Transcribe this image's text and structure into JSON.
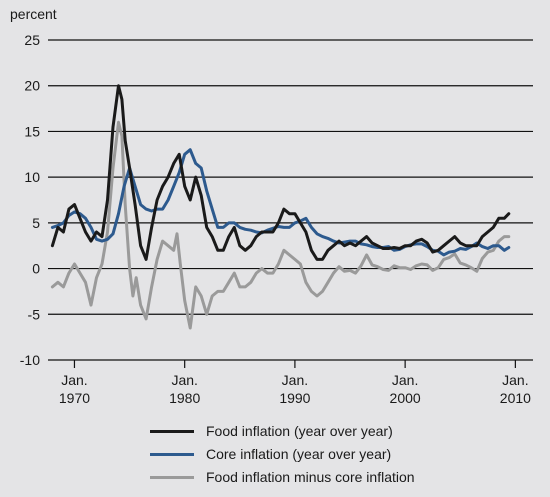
{
  "colors": {
    "food": "#1a1a1a",
    "core": "#2d5a8e",
    "diff": "#9a9a9a",
    "grid": "#111111"
  },
  "chart_data": {
    "type": "line",
    "ylabel": "percent",
    "ylim": [
      -10,
      25
    ],
    "yticks": [
      25,
      20,
      15,
      10,
      5,
      0,
      -5,
      -10
    ],
    "xlim": [
      1967.6,
      2011.6
    ],
    "xticks": [
      {
        "x": 1970,
        "line1": "Jan.",
        "line2": "1970"
      },
      {
        "x": 1980,
        "line1": "Jan.",
        "line2": "1980"
      },
      {
        "x": 1990,
        "line1": "Jan.",
        "line2": "1990"
      },
      {
        "x": 2000,
        "line1": "Jan.",
        "line2": "2000"
      },
      {
        "x": 2010,
        "line1": "Jan.",
        "line2": "2010"
      }
    ],
    "grid": true,
    "legend_position": "bottom",
    "series": [
      {
        "key": "food",
        "name": "Food inflation (year over year)",
        "points": [
          [
            1968.0,
            2.5
          ],
          [
            1968.5,
            4.5
          ],
          [
            1969.0,
            4.0
          ],
          [
            1969.5,
            6.5
          ],
          [
            1970.0,
            7.0
          ],
          [
            1970.5,
            5.5
          ],
          [
            1971.0,
            4.0
          ],
          [
            1971.5,
            3.0
          ],
          [
            1972.0,
            4.0
          ],
          [
            1972.5,
            3.5
          ],
          [
            1973.0,
            7.5
          ],
          [
            1973.5,
            15.5
          ],
          [
            1974.0,
            20.0
          ],
          [
            1974.3,
            18.5
          ],
          [
            1974.6,
            14.0
          ],
          [
            1975.0,
            11.0
          ],
          [
            1975.5,
            7.0
          ],
          [
            1976.0,
            2.5
          ],
          [
            1976.5,
            1.0
          ],
          [
            1977.0,
            4.5
          ],
          [
            1977.5,
            7.5
          ],
          [
            1978.0,
            9.0
          ],
          [
            1978.5,
            10.0
          ],
          [
            1979.0,
            11.5
          ],
          [
            1979.5,
            12.5
          ],
          [
            1980.0,
            9.0
          ],
          [
            1980.5,
            7.5
          ],
          [
            1981.0,
            10.0
          ],
          [
            1981.5,
            8.0
          ],
          [
            1982.0,
            4.5
          ],
          [
            1982.5,
            3.5
          ],
          [
            1983.0,
            2.0
          ],
          [
            1983.5,
            2.0
          ],
          [
            1984.0,
            3.5
          ],
          [
            1984.5,
            4.5
          ],
          [
            1985.0,
            2.5
          ],
          [
            1985.5,
            2.0
          ],
          [
            1986.0,
            2.5
          ],
          [
            1986.5,
            3.5
          ],
          [
            1987.0,
            4.0
          ],
          [
            1987.5,
            4.0
          ],
          [
            1988.0,
            4.0
          ],
          [
            1988.5,
            5.0
          ],
          [
            1989.0,
            6.5
          ],
          [
            1989.5,
            6.0
          ],
          [
            1990.0,
            6.0
          ],
          [
            1990.5,
            5.0
          ],
          [
            1991.0,
            4.0
          ],
          [
            1991.5,
            2.0
          ],
          [
            1992.0,
            1.0
          ],
          [
            1992.5,
            1.0
          ],
          [
            1993.0,
            2.0
          ],
          [
            1993.5,
            2.5
          ],
          [
            1994.0,
            3.0
          ],
          [
            1994.5,
            2.5
          ],
          [
            1995.0,
            2.8
          ],
          [
            1995.5,
            2.5
          ],
          [
            1996.0,
            3.0
          ],
          [
            1996.5,
            3.5
          ],
          [
            1997.0,
            2.8
          ],
          [
            1997.5,
            2.5
          ],
          [
            1998.0,
            2.2
          ],
          [
            1998.5,
            2.2
          ],
          [
            1999.0,
            2.3
          ],
          [
            1999.5,
            2.2
          ],
          [
            2000.0,
            2.5
          ],
          [
            2000.5,
            2.5
          ],
          [
            2001.0,
            3.0
          ],
          [
            2001.5,
            3.2
          ],
          [
            2002.0,
            2.8
          ],
          [
            2002.5,
            1.8
          ],
          [
            2003.0,
            2.0
          ],
          [
            2003.5,
            2.5
          ],
          [
            2004.0,
            3.0
          ],
          [
            2004.5,
            3.5
          ],
          [
            2005.0,
            2.8
          ],
          [
            2005.5,
            2.5
          ],
          [
            2006.0,
            2.5
          ],
          [
            2006.5,
            2.5
          ],
          [
            2007.0,
            3.5
          ],
          [
            2007.5,
            4.0
          ],
          [
            2008.0,
            4.5
          ],
          [
            2008.5,
            5.5
          ],
          [
            2009.0,
            5.5
          ],
          [
            2009.4,
            6.0
          ]
        ]
      },
      {
        "key": "core",
        "name": "Core inflation (year over year)",
        "points": [
          [
            1968.0,
            4.5
          ],
          [
            1968.5,
            4.7
          ],
          [
            1969.0,
            5.0
          ],
          [
            1969.5,
            5.8
          ],
          [
            1970.0,
            6.2
          ],
          [
            1970.5,
            6.0
          ],
          [
            1971.0,
            5.5
          ],
          [
            1971.5,
            4.5
          ],
          [
            1972.0,
            3.2
          ],
          [
            1972.5,
            3.0
          ],
          [
            1973.0,
            3.2
          ],
          [
            1973.5,
            3.8
          ],
          [
            1974.0,
            6.0
          ],
          [
            1974.5,
            9.0
          ],
          [
            1975.0,
            11.0
          ],
          [
            1975.5,
            9.0
          ],
          [
            1976.0,
            7.0
          ],
          [
            1976.5,
            6.5
          ],
          [
            1977.0,
            6.3
          ],
          [
            1977.5,
            6.5
          ],
          [
            1978.0,
            6.5
          ],
          [
            1978.5,
            7.5
          ],
          [
            1979.0,
            9.0
          ],
          [
            1979.5,
            10.5
          ],
          [
            1980.0,
            12.5
          ],
          [
            1980.5,
            13.0
          ],
          [
            1981.0,
            11.5
          ],
          [
            1981.5,
            11.0
          ],
          [
            1982.0,
            8.5
          ],
          [
            1982.5,
            6.5
          ],
          [
            1983.0,
            4.5
          ],
          [
            1983.5,
            4.5
          ],
          [
            1984.0,
            5.0
          ],
          [
            1984.5,
            5.0
          ],
          [
            1985.0,
            4.5
          ],
          [
            1985.5,
            4.3
          ],
          [
            1986.0,
            4.2
          ],
          [
            1986.5,
            4.0
          ],
          [
            1987.0,
            3.9
          ],
          [
            1987.5,
            4.2
          ],
          [
            1988.0,
            4.4
          ],
          [
            1988.5,
            4.6
          ],
          [
            1989.0,
            4.5
          ],
          [
            1989.5,
            4.5
          ],
          [
            1990.0,
            5.0
          ],
          [
            1990.5,
            5.2
          ],
          [
            1991.0,
            5.5
          ],
          [
            1991.5,
            4.5
          ],
          [
            1992.0,
            3.8
          ],
          [
            1992.5,
            3.5
          ],
          [
            1993.0,
            3.3
          ],
          [
            1993.5,
            3.0
          ],
          [
            1994.0,
            2.8
          ],
          [
            1994.5,
            2.9
          ],
          [
            1995.0,
            3.0
          ],
          [
            1995.5,
            3.0
          ],
          [
            1996.0,
            2.7
          ],
          [
            1996.5,
            2.6
          ],
          [
            1997.0,
            2.4
          ],
          [
            1997.5,
            2.3
          ],
          [
            1998.0,
            2.3
          ],
          [
            1998.5,
            2.4
          ],
          [
            1999.0,
            2.0
          ],
          [
            1999.5,
            2.1
          ],
          [
            2000.0,
            2.4
          ],
          [
            2000.5,
            2.6
          ],
          [
            2001.0,
            2.7
          ],
          [
            2001.5,
            2.7
          ],
          [
            2002.0,
            2.4
          ],
          [
            2002.5,
            2.0
          ],
          [
            2003.0,
            1.9
          ],
          [
            2003.5,
            1.5
          ],
          [
            2004.0,
            1.8
          ],
          [
            2004.5,
            1.9
          ],
          [
            2005.0,
            2.2
          ],
          [
            2005.5,
            2.1
          ],
          [
            2006.0,
            2.4
          ],
          [
            2006.5,
            2.8
          ],
          [
            2007.0,
            2.4
          ],
          [
            2007.5,
            2.2
          ],
          [
            2008.0,
            2.5
          ],
          [
            2008.5,
            2.5
          ],
          [
            2009.0,
            2.0
          ],
          [
            2009.4,
            2.3
          ]
        ]
      },
      {
        "key": "diff",
        "name": "Food inflation minus core inflation",
        "points": [
          [
            1968.0,
            -2.0
          ],
          [
            1968.5,
            -1.5
          ],
          [
            1969.0,
            -2.0
          ],
          [
            1969.5,
            -0.5
          ],
          [
            1970.0,
            0.5
          ],
          [
            1970.5,
            -0.5
          ],
          [
            1971.0,
            -1.5
          ],
          [
            1971.5,
            -4.0
          ],
          [
            1972.0,
            -1.0
          ],
          [
            1972.5,
            0.5
          ],
          [
            1973.0,
            4.0
          ],
          [
            1973.5,
            11.0
          ],
          [
            1974.0,
            16.0
          ],
          [
            1974.3,
            14.5
          ],
          [
            1974.6,
            7.0
          ],
          [
            1975.0,
            0.0
          ],
          [
            1975.3,
            -3.0
          ],
          [
            1975.6,
            -1.0
          ],
          [
            1976.0,
            -4.0
          ],
          [
            1976.5,
            -5.5
          ],
          [
            1977.0,
            -2.0
          ],
          [
            1977.5,
            1.0
          ],
          [
            1978.0,
            3.0
          ],
          [
            1978.5,
            2.5
          ],
          [
            1979.0,
            2.0
          ],
          [
            1979.3,
            3.8
          ],
          [
            1979.6,
            0.5
          ],
          [
            1980.0,
            -3.5
          ],
          [
            1980.5,
            -6.5
          ],
          [
            1981.0,
            -2.0
          ],
          [
            1981.5,
            -3.0
          ],
          [
            1982.0,
            -5.0
          ],
          [
            1982.5,
            -3.0
          ],
          [
            1983.0,
            -2.5
          ],
          [
            1983.5,
            -2.5
          ],
          [
            1984.0,
            -1.5
          ],
          [
            1984.5,
            -0.5
          ],
          [
            1985.0,
            -2.0
          ],
          [
            1985.5,
            -2.0
          ],
          [
            1986.0,
            -1.5
          ],
          [
            1986.5,
            -0.5
          ],
          [
            1987.0,
            0.0
          ],
          [
            1987.5,
            -0.5
          ],
          [
            1988.0,
            -0.5
          ],
          [
            1988.5,
            0.5
          ],
          [
            1989.0,
            2.0
          ],
          [
            1989.5,
            1.5
          ],
          [
            1990.0,
            1.0
          ],
          [
            1990.5,
            0.5
          ],
          [
            1991.0,
            -1.5
          ],
          [
            1991.5,
            -2.5
          ],
          [
            1992.0,
            -3.0
          ],
          [
            1992.5,
            -2.5
          ],
          [
            1993.0,
            -1.5
          ],
          [
            1993.5,
            -0.5
          ],
          [
            1994.0,
            0.2
          ],
          [
            1994.5,
            -0.3
          ],
          [
            1995.0,
            -0.2
          ],
          [
            1995.5,
            -0.5
          ],
          [
            1996.0,
            0.3
          ],
          [
            1996.5,
            1.5
          ],
          [
            1997.0,
            0.4
          ],
          [
            1997.5,
            0.2
          ],
          [
            1998.0,
            -0.1
          ],
          [
            1998.5,
            -0.2
          ],
          [
            1999.0,
            0.3
          ],
          [
            1999.5,
            0.1
          ],
          [
            2000.0,
            0.1
          ],
          [
            2000.5,
            -0.1
          ],
          [
            2001.0,
            0.3
          ],
          [
            2001.5,
            0.5
          ],
          [
            2002.0,
            0.4
          ],
          [
            2002.5,
            -0.2
          ],
          [
            2003.0,
            0.1
          ],
          [
            2003.5,
            1.0
          ],
          [
            2004.0,
            1.2
          ],
          [
            2004.5,
            1.6
          ],
          [
            2005.0,
            0.6
          ],
          [
            2005.5,
            0.4
          ],
          [
            2006.0,
            0.1
          ],
          [
            2006.5,
            -0.3
          ],
          [
            2007.0,
            1.1
          ],
          [
            2007.5,
            1.8
          ],
          [
            2008.0,
            2.0
          ],
          [
            2008.5,
            3.0
          ],
          [
            2009.0,
            3.5
          ],
          [
            2009.4,
            3.5
          ]
        ]
      }
    ]
  }
}
